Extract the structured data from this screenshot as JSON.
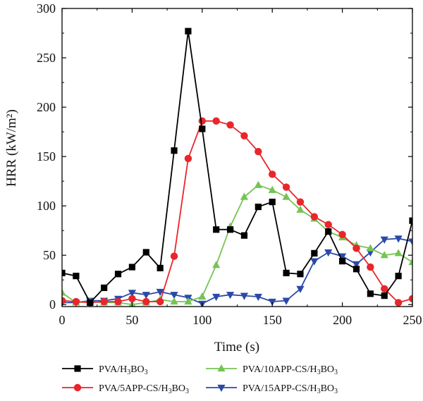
{
  "chart_data": {
    "type": "line",
    "xlabel": "Time (s)",
    "ylabel": "HRR (kW/m²)",
    "xlim": [
      0,
      250
    ],
    "ylim": [
      -2,
      300
    ],
    "xticks": [
      0,
      50,
      100,
      150,
      200,
      250
    ],
    "yticks": [
      0,
      50,
      100,
      150,
      200,
      250,
      300
    ],
    "grid": false,
    "legend_position": "bottom",
    "series": [
      {
        "name": "PVA/H3BO3",
        "color": "#000000",
        "marker": "square",
        "x": [
          0,
          10,
          20,
          30,
          40,
          50,
          60,
          70,
          80,
          90,
          100,
          110,
          120,
          130,
          140,
          150,
          160,
          170,
          180,
          190,
          200,
          210,
          220,
          230,
          240,
          250
        ],
        "y": [
          32,
          29,
          2,
          17,
          31,
          38,
          53,
          37,
          156,
          277,
          178,
          76,
          76,
          70,
          99,
          104,
          32,
          31,
          52,
          74,
          44,
          36,
          11,
          9,
          29,
          85
        ]
      },
      {
        "name": "PVA/5APP-CS/H3BO3",
        "color": "#e8262b",
        "marker": "circle",
        "x": [
          0,
          10,
          20,
          30,
          40,
          50,
          60,
          70,
          80,
          90,
          100,
          110,
          120,
          130,
          140,
          150,
          160,
          170,
          180,
          190,
          200,
          210,
          220,
          230,
          240,
          250
        ],
        "y": [
          4,
          3,
          2,
          3,
          3,
          6,
          3,
          3,
          49,
          148,
          186,
          186,
          182,
          171,
          155,
          132,
          119,
          104,
          89,
          81,
          71,
          57,
          38,
          16,
          2,
          6
        ]
      },
      {
        "name": "PVA/10APP-CS/H3BO3",
        "color": "#76c454",
        "marker": "triangle-up",
        "x": [
          0,
          10,
          20,
          30,
          40,
          50,
          60,
          70,
          80,
          90,
          100,
          110,
          120,
          130,
          140,
          150,
          160,
          170,
          180,
          190,
          200,
          210,
          220,
          230,
          240,
          250
        ],
        "y": [
          12,
          2,
          3,
          2,
          2,
          0,
          2,
          5,
          3,
          3,
          8,
          40,
          79,
          109,
          121,
          116,
          109,
          96,
          87,
          74,
          68,
          60,
          57,
          50,
          52,
          43
        ]
      },
      {
        "name": "PVA/15APP-CS/H3BO3",
        "color": "#2a4aa8",
        "marker": "triangle-down",
        "x": [
          0,
          10,
          20,
          30,
          40,
          50,
          60,
          70,
          80,
          90,
          100,
          110,
          120,
          130,
          140,
          150,
          160,
          170,
          180,
          190,
          200,
          210,
          220,
          230,
          240,
          250
        ],
        "y": [
          2,
          2,
          4,
          4,
          6,
          12,
          10,
          13,
          10,
          7,
          1,
          8,
          10,
          9,
          8,
          3,
          4,
          16,
          44,
          53,
          49,
          41,
          53,
          66,
          67,
          64
        ]
      }
    ]
  }
}
